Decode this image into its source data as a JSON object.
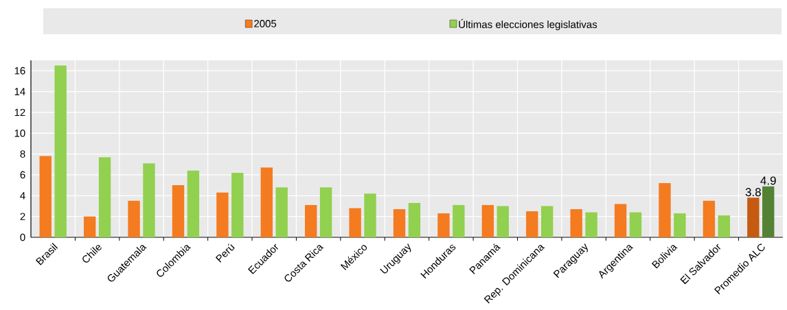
{
  "chart_data": {
    "type": "bar",
    "categories": [
      "Brasil",
      "Chile",
      "Guatemala",
      "Colombia",
      "Perú",
      "Ecuador",
      "Costa Rica",
      "México",
      "Uruguay",
      "Honduras",
      "Panamá",
      "Rep. Dominicana",
      "Paraguay",
      "Argentina",
      "Bolivia",
      "El Salvador",
      "Promedio ALC"
    ],
    "series": [
      {
        "name": "2005",
        "colors": [
          "#f47b20",
          "#f47b20",
          "#f47b20",
          "#f47b20",
          "#f47b20",
          "#f47b20",
          "#f47b20",
          "#f47b20",
          "#f47b20",
          "#f47b20",
          "#f47b20",
          "#f47b20",
          "#f47b20",
          "#f47b20",
          "#f47b20",
          "#f47b20",
          "#c55a11"
        ],
        "values": [
          7.8,
          2.0,
          3.5,
          5.0,
          4.3,
          6.7,
          3.1,
          2.8,
          2.7,
          2.3,
          3.1,
          2.5,
          2.7,
          3.2,
          5.2,
          3.5,
          3.8
        ],
        "value_labels": [
          null,
          null,
          null,
          null,
          null,
          null,
          null,
          null,
          null,
          null,
          null,
          null,
          null,
          null,
          null,
          null,
          "3.8"
        ]
      },
      {
        "name": "Últimas elecciones legislativas",
        "colors": [
          "#92d050",
          "#92d050",
          "#92d050",
          "#92d050",
          "#92d050",
          "#92d050",
          "#92d050",
          "#92d050",
          "#92d050",
          "#92d050",
          "#92d050",
          "#92d050",
          "#92d050",
          "#92d050",
          "#92d050",
          "#92d050",
          "#548235"
        ],
        "values": [
          16.5,
          7.7,
          7.1,
          6.4,
          6.2,
          4.8,
          4.8,
          4.2,
          3.3,
          3.1,
          3.0,
          3.0,
          2.4,
          2.4,
          2.3,
          2.1,
          4.9
        ],
        "value_labels": [
          null,
          null,
          null,
          null,
          null,
          null,
          null,
          null,
          null,
          null,
          null,
          null,
          null,
          null,
          null,
          null,
          "4.9"
        ]
      }
    ],
    "ylim": [
      0,
      17
    ],
    "yticks": [
      0,
      2,
      4,
      6,
      8,
      10,
      12,
      14,
      16
    ],
    "grid": true,
    "legend": "top"
  }
}
